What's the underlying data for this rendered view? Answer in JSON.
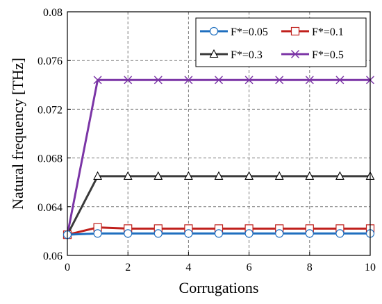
{
  "chart_data": {
    "type": "line",
    "title": "",
    "xlabel": "Corrugations",
    "ylabel": "Natural frequency [THz]",
    "xlim": [
      0,
      10
    ],
    "ylim": [
      0.06,
      0.08
    ],
    "x_ticks": [
      0,
      2,
      4,
      6,
      8,
      10
    ],
    "y_ticks": [
      0.06,
      0.064,
      0.068,
      0.072,
      0.076,
      0.08
    ],
    "y_tick_labels": [
      "0.06",
      "0.064",
      "0.068",
      "0.072",
      "0.076",
      "0.08"
    ],
    "grid": true,
    "legend_position": "top-right",
    "x": [
      0,
      1,
      2,
      3,
      4,
      5,
      6,
      7,
      8,
      9,
      10
    ],
    "series": [
      {
        "name": "F*=0.05",
        "color": "#1f6fbf",
        "marker": "circle",
        "values": [
          0.0617,
          0.0618,
          0.0618,
          0.0618,
          0.0618,
          0.0618,
          0.0618,
          0.0618,
          0.0618,
          0.0618,
          0.0618
        ]
      },
      {
        "name": "F*=0.1",
        "color": "#c0201c",
        "marker": "square",
        "values": [
          0.0617,
          0.0623,
          0.0622,
          0.0622,
          0.0622,
          0.0622,
          0.0622,
          0.0622,
          0.0622,
          0.0622,
          0.0622
        ]
      },
      {
        "name": "F*=0.3",
        "color": "#3a3a3a",
        "marker": "triangle",
        "values": [
          0.0617,
          0.0665,
          0.0665,
          0.0665,
          0.0665,
          0.0665,
          0.0665,
          0.0665,
          0.0665,
          0.0665,
          0.0665
        ]
      },
      {
        "name": "F*=0.5",
        "color": "#7b35a6",
        "marker": "x",
        "values": [
          0.0617,
          0.0744,
          0.0744,
          0.0744,
          0.0744,
          0.0744,
          0.0744,
          0.0744,
          0.0744,
          0.0744,
          0.0744
        ]
      }
    ]
  }
}
